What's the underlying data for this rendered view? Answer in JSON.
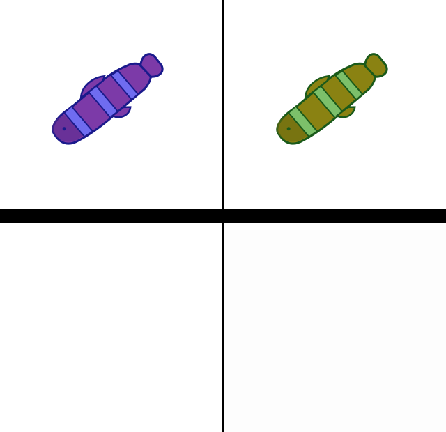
{
  "panels": [
    {
      "id": "top-left",
      "content": "fish-silhouette",
      "colors": {
        "body": "#7c3aa8",
        "body_dark": "#5a2a8a",
        "stripe": "#6f6cf0",
        "outline": "#1a1a8c"
      }
    },
    {
      "id": "top-right",
      "content": "fish-silhouette",
      "colors": {
        "body": "#8a8212",
        "body_dark": "#6a6a10",
        "stripe": "#7cc06a",
        "outline": "#1a5a1a"
      }
    },
    {
      "id": "bottom-left",
      "content": "empty"
    },
    {
      "id": "bottom-right",
      "content": "empty"
    }
  ],
  "divider_color": "#000000",
  "background_color": "#ffffff"
}
